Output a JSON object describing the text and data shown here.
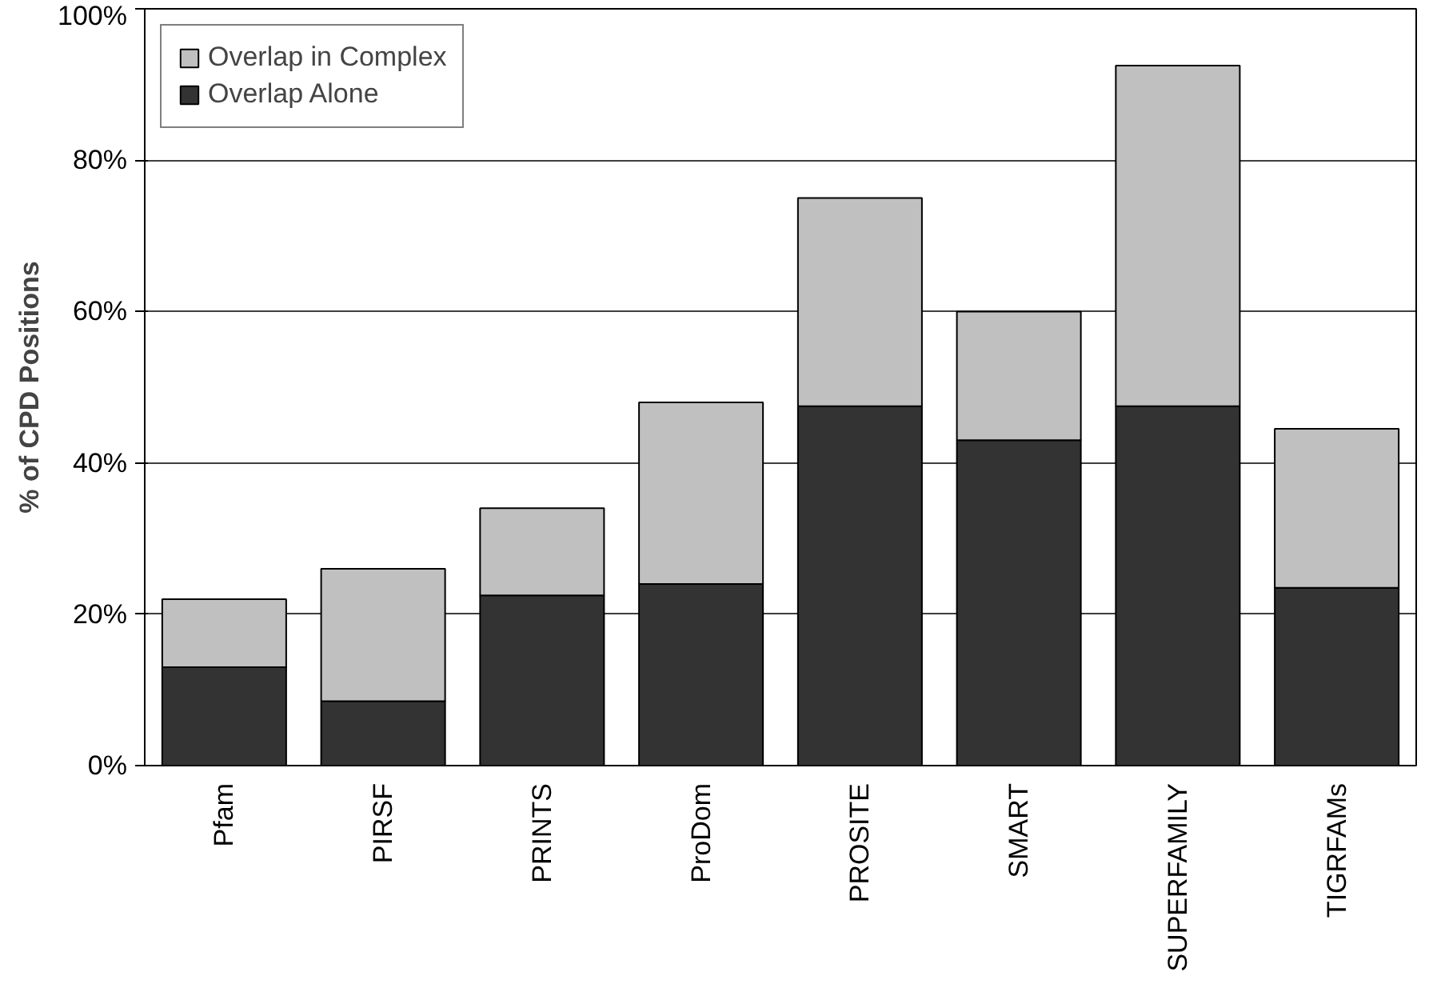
{
  "chart_data": {
    "type": "bar",
    "stacked": true,
    "ylabel": "% of CPD Positions",
    "categories": [
      "Pfam",
      "PIRSF",
      "PRINTS",
      "ProDom",
      "PROSITE",
      "SMART",
      "SUPERFAMILY",
      "TIGRFAMs"
    ],
    "series": [
      {
        "name": "Overlap Alone",
        "color": "#333333",
        "values": [
          13,
          8.5,
          22.5,
          24,
          47.5,
          43,
          47.5,
          23.5
        ]
      },
      {
        "name": "Overlap in Complex",
        "color": "#c0c0c0",
        "values": [
          9,
          17.5,
          11.5,
          24,
          27.5,
          17,
          45,
          21
        ]
      }
    ],
    "ylim": [
      0,
      100
    ],
    "yticks": [
      {
        "value": 0,
        "label": "0%"
      },
      {
        "value": 20,
        "label": "20%"
      },
      {
        "value": 40,
        "label": "40%"
      },
      {
        "value": 60,
        "label": "60%"
      },
      {
        "value": 80,
        "label": "80%"
      },
      {
        "value": 100,
        "label": "100%"
      }
    ],
    "grid": "y",
    "legend": "top left"
  }
}
